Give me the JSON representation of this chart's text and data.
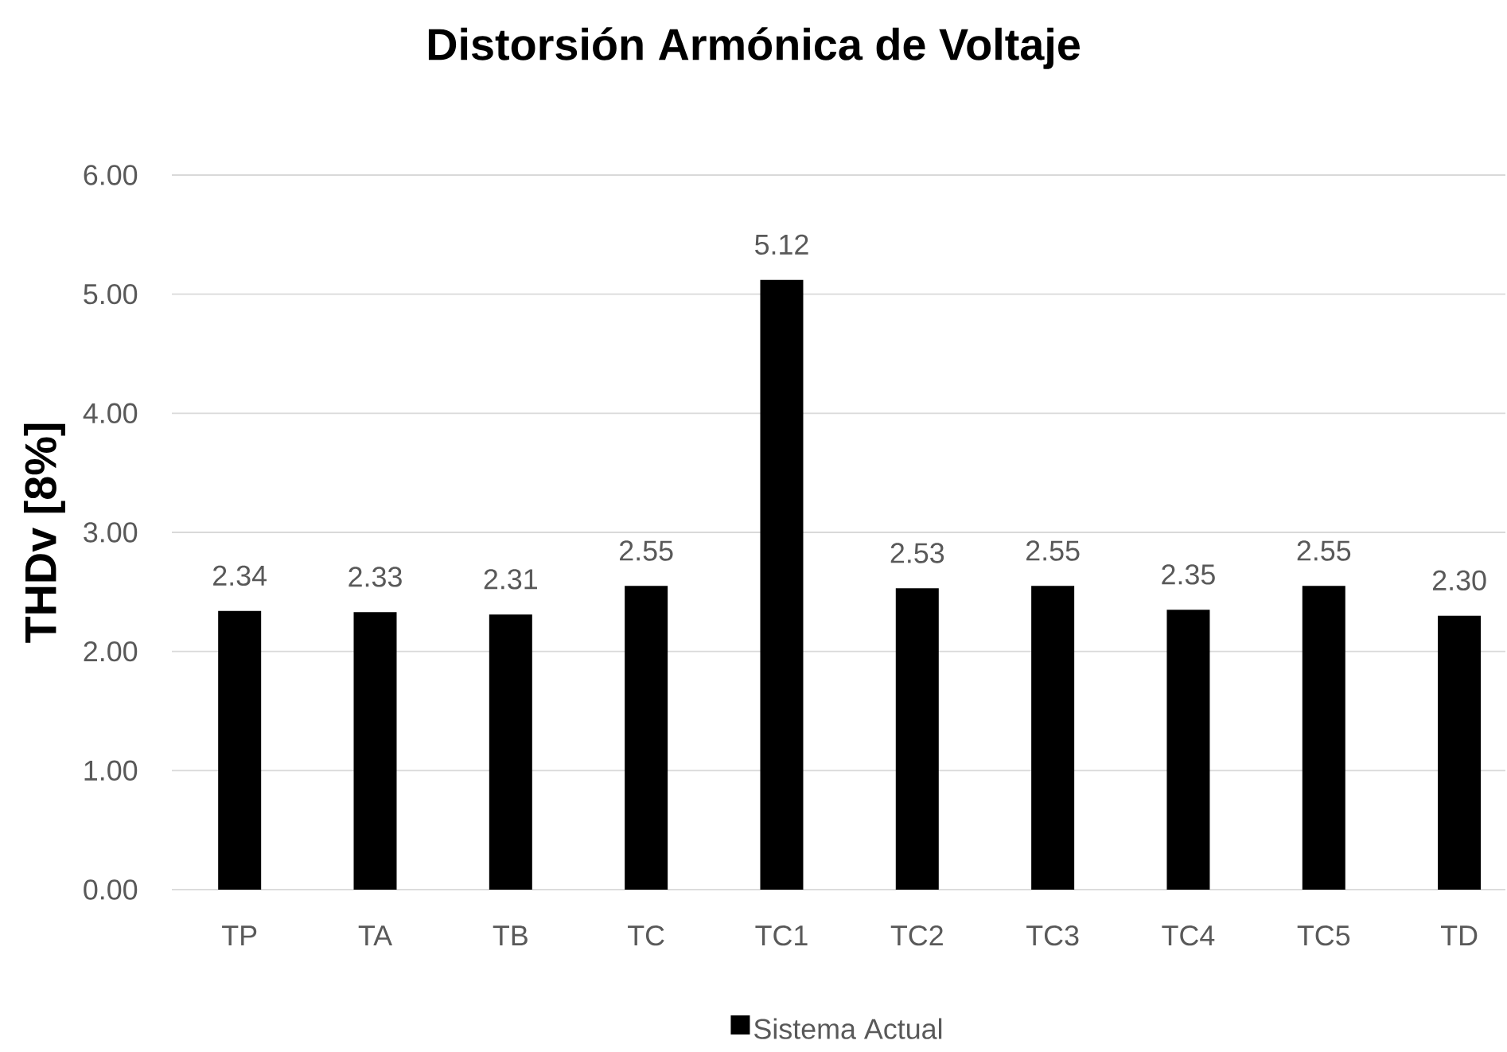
{
  "chart_data": {
    "type": "bar",
    "title": "Distorsión Armónica de Voltaje",
    "ylabel": "THDv [8%]",
    "categories": [
      "TP",
      "TA",
      "TB",
      "TC",
      "TC1",
      "TC2",
      "TC3",
      "TC4",
      "TC5",
      "TD"
    ],
    "series": [
      {
        "name": "Sistema Actual",
        "color": "#000000",
        "values": [
          2.34,
          2.33,
          2.31,
          2.55,
          5.12,
          2.53,
          2.55,
          2.35,
          2.55,
          2.3
        ],
        "value_labels": [
          "2.34",
          "2.33",
          "2.31",
          "2.55",
          "5.12",
          "2.53",
          "2.55",
          "2.35",
          "2.55",
          "2.30"
        ]
      }
    ],
    "ylim": [
      0,
      6
    ],
    "yticks": [
      {
        "value": 0,
        "label": "0.00"
      },
      {
        "value": 1,
        "label": "1.00"
      },
      {
        "value": 2,
        "label": "2.00"
      },
      {
        "value": 3,
        "label": "3.00"
      },
      {
        "value": 4,
        "label": "4.00"
      },
      {
        "value": 5,
        "label": "5.00"
      },
      {
        "value": 6,
        "label": "6.00"
      }
    ],
    "grid": "y",
    "legend": "bottom"
  }
}
